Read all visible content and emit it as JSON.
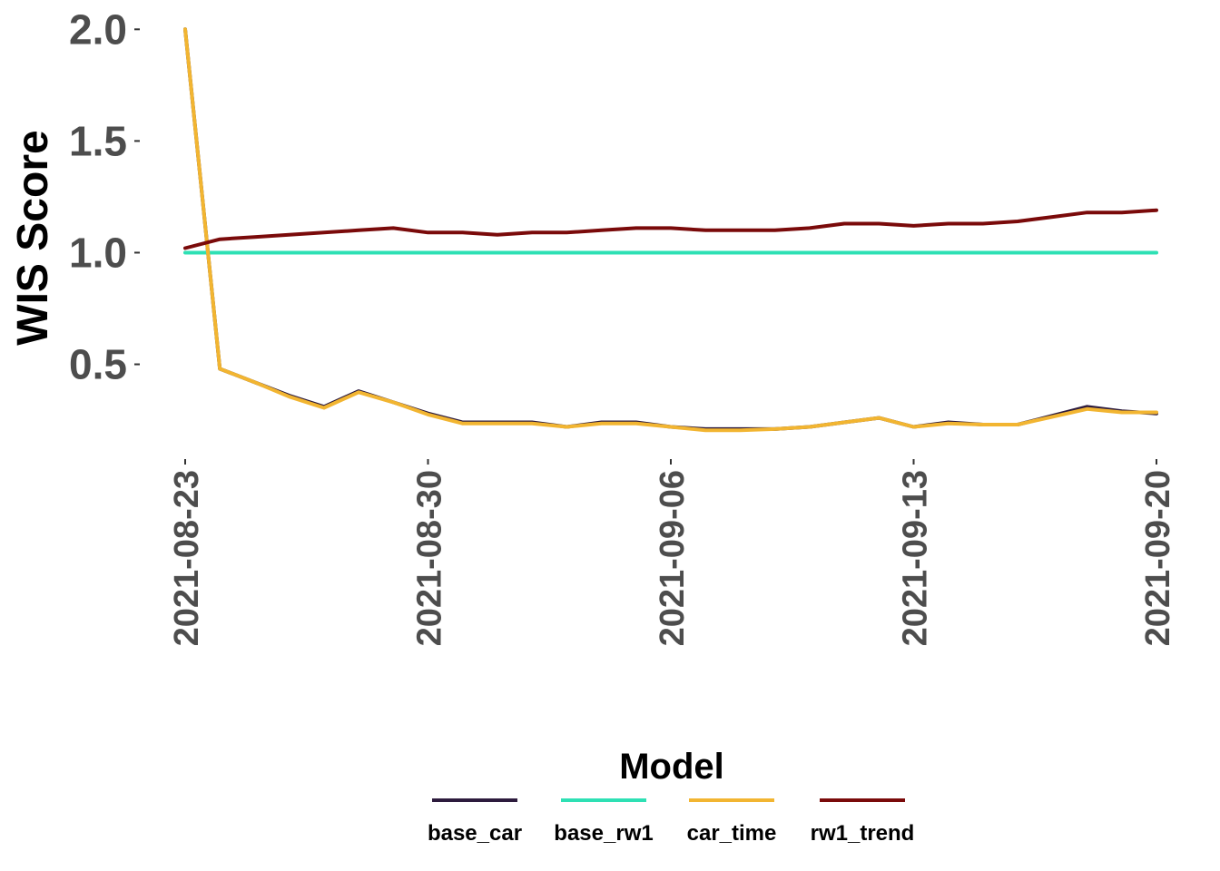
{
  "chart_data": {
    "type": "line",
    "title": "",
    "xlabel": "",
    "ylabel": "WIS Score",
    "ylim": [
      0.1,
      2.05
    ],
    "yticks": [
      0.5,
      1.0,
      1.5,
      2.0
    ],
    "ytick_labels": [
      "0.5",
      "1.0",
      "1.5",
      "2.0"
    ],
    "xticks": [
      "2021-08-23",
      "2021-08-30",
      "2021-09-06",
      "2021-09-13",
      "2021-09-20"
    ],
    "x": [
      "2021-08-23",
      "2021-08-24",
      "2021-08-25",
      "2021-08-26",
      "2021-08-27",
      "2021-08-28",
      "2021-08-29",
      "2021-08-30",
      "2021-08-31",
      "2021-09-01",
      "2021-09-02",
      "2021-09-03",
      "2021-09-04",
      "2021-09-05",
      "2021-09-06",
      "2021-09-07",
      "2021-09-08",
      "2021-09-09",
      "2021-09-10",
      "2021-09-11",
      "2021-09-12",
      "2021-09-13",
      "2021-09-14",
      "2021-09-15",
      "2021-09-16",
      "2021-09-17",
      "2021-09-18",
      "2021-09-19",
      "2021-09-20"
    ],
    "legend_title": "Model",
    "legend_position": "bottom",
    "series": [
      {
        "name": "base_car",
        "color": "#2d1b3d",
        "values": [
          2.0,
          0.48,
          0.42,
          0.36,
          0.31,
          0.38,
          0.33,
          0.28,
          0.24,
          0.24,
          0.24,
          0.22,
          0.24,
          0.24,
          0.22,
          0.21,
          0.21,
          0.21,
          0.22,
          0.24,
          0.26,
          0.22,
          0.24,
          0.23,
          0.23,
          0.27,
          0.31,
          0.29,
          0.28
        ]
      },
      {
        "name": "base_rw1",
        "color": "#2ee0b4",
        "values": [
          1.0,
          1.0,
          1.0,
          1.0,
          1.0,
          1.0,
          1.0,
          1.0,
          1.0,
          1.0,
          1.0,
          1.0,
          1.0,
          1.0,
          1.0,
          1.0,
          1.0,
          1.0,
          1.0,
          1.0,
          1.0,
          1.0,
          1.0,
          1.0,
          1.0,
          1.0,
          1.0,
          1.0,
          1.0
        ]
      },
      {
        "name": "car_time",
        "color": "#f2b531",
        "values": [
          2.0,
          0.48,
          0.42,
          0.355,
          0.305,
          0.375,
          0.33,
          0.275,
          0.235,
          0.235,
          0.235,
          0.22,
          0.235,
          0.235,
          0.22,
          0.205,
          0.205,
          0.21,
          0.22,
          0.24,
          0.26,
          0.22,
          0.235,
          0.23,
          0.23,
          0.265,
          0.3,
          0.285,
          0.285
        ]
      },
      {
        "name": "rw1_trend",
        "color": "#7a0a0a",
        "values": [
          1.02,
          1.06,
          1.07,
          1.08,
          1.09,
          1.1,
          1.11,
          1.09,
          1.09,
          1.08,
          1.09,
          1.09,
          1.1,
          1.11,
          1.11,
          1.1,
          1.1,
          1.1,
          1.11,
          1.13,
          1.13,
          1.12,
          1.13,
          1.13,
          1.14,
          1.16,
          1.18,
          1.18,
          1.19
        ]
      }
    ]
  }
}
